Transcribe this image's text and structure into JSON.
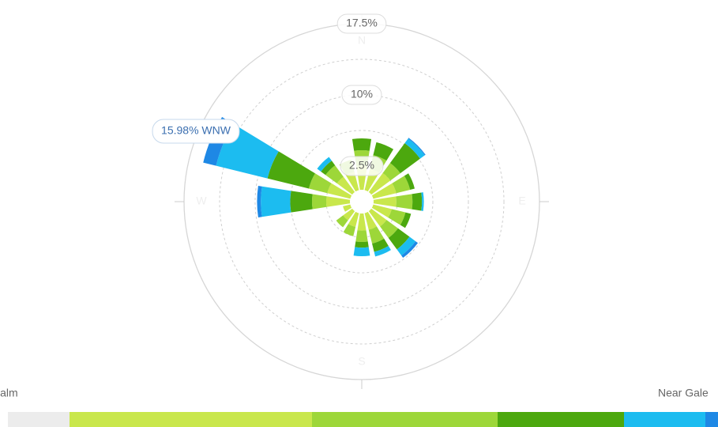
{
  "chart_data": {
    "type": "windrose",
    "categories": [
      "N",
      null,
      null,
      null,
      "E",
      null,
      null,
      null,
      "S",
      null,
      null,
      null,
      "W",
      null,
      null,
      null
    ],
    "series": [
      {
        "color": "#c9e74c",
        "values": [
          2.5,
          2.3,
          2.5,
          2.5,
          2.4,
          2.0,
          2.0,
          1.8,
          1.8,
          1.5,
          1.2,
          0.8,
          2.5,
          2.5,
          2.0,
          2.0
        ]
      },
      {
        "color": "#9dd739",
        "values": [
          1.67,
          1.5,
          1.3,
          1.5,
          1.7,
          1.5,
          1.5,
          1.5,
          1.2,
          1.0,
          0.9,
          0,
          1.5,
          2.0,
          1.5,
          1.3
        ]
      },
      {
        "color": "#4ca80e",
        "values": [
          1.25,
          1.4,
          2.6,
          0.5,
          1.0,
          0.6,
          1.5,
          0.9,
          0.6,
          0,
          0,
          0,
          2.3,
          4.5,
          0.6,
          0
        ]
      },
      {
        "color": "#1cbcf0",
        "values": [
          0,
          0,
          0.6,
          0,
          0.2,
          0,
          0.8,
          0.5,
          0.9,
          0,
          0,
          0,
          3.1,
          5.58,
          0.5,
          0
        ]
      },
      {
        "color": "#1e88e5",
        "values": [
          0,
          0,
          0.1,
          0,
          0,
          0,
          0.3,
          0,
          0,
          0,
          0,
          0,
          0.4,
          1.4,
          0,
          0
        ]
      }
    ],
    "calm_color": "#ececec",
    "legend_labels": [
      "Calm",
      "Near Gale"
    ],
    "ylim": [
      -1.25,
      17.5
    ],
    "yticks": [
      {
        "value": 2.5,
        "label": "2.5%"
      },
      {
        "value": 10,
        "label": "10%"
      },
      {
        "value": 17.5,
        "label": "17.5%"
      }
    ],
    "annotation": "15.98% WNW"
  }
}
